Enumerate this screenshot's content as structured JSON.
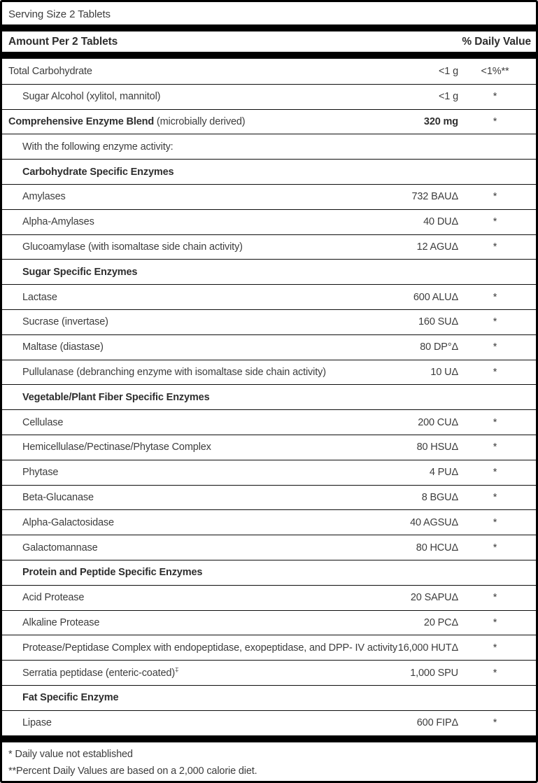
{
  "panel": {
    "serving_size": "Serving Size 2 Tablets",
    "columns": {
      "amount_header": "Amount Per 2 Tablets",
      "dv_header": "% Daily Value"
    },
    "rows": [
      {
        "label": "Total Carbohydrate",
        "amount": "<1 g",
        "dv": "<1%**"
      },
      {
        "label": "Sugar Alcohol (xylitol, mannitol)",
        "indent": true,
        "amount": "<1 g",
        "dv": "*"
      },
      {
        "label_bold": "Comprehensive Enzyme Blend",
        "label": " (microbially derived)",
        "amount": "320 mg",
        "amount_bold": true,
        "dv": "*"
      },
      {
        "label": "With the following enzyme activity:",
        "indent": true
      },
      {
        "label": "Carbohydrate Specific Enzymes",
        "indent": true,
        "bold": true,
        "section": true
      },
      {
        "label": "Amylases",
        "indent": true,
        "amount": "732 BAUΔ",
        "dv": "*"
      },
      {
        "label": "Alpha-Amylases",
        "indent": true,
        "amount": "40 DUΔ",
        "dv": "*"
      },
      {
        "label": "Glucoamylase (with isomaltase side chain activity)",
        "indent": true,
        "amount": "12 AGUΔ",
        "dv": "*"
      },
      {
        "label": "Sugar Specific Enzymes",
        "indent": true,
        "bold": true,
        "section": true
      },
      {
        "label": "Lactase",
        "indent": true,
        "amount": "600 ALUΔ",
        "dv": "*"
      },
      {
        "label": "Sucrase (invertase)",
        "indent": true,
        "amount": "160 SUΔ",
        "dv": "*"
      },
      {
        "label": "Maltase (diastase)",
        "indent": true,
        "amount": "80 DP°Δ",
        "dv": "*"
      },
      {
        "label": "Pullulanase (debranching enzyme with isomaltase side chain activity)",
        "indent": true,
        "amount": "10 UΔ",
        "dv": "*"
      },
      {
        "label": "Vegetable/Plant Fiber Specific Enzymes",
        "indent": true,
        "bold": true,
        "section": true
      },
      {
        "label": "Cellulase",
        "indent": true,
        "amount": "200 CUΔ",
        "dv": "*"
      },
      {
        "label": "Hemicellulase/Pectinase/Phytase Complex",
        "indent": true,
        "amount": "80 HSUΔ",
        "dv": "*"
      },
      {
        "label": "Phytase",
        "indent": true,
        "amount": "4 PUΔ",
        "dv": "*"
      },
      {
        "label": "Beta-Glucanase",
        "indent": true,
        "amount": "8 BGUΔ",
        "dv": "*"
      },
      {
        "label": "Alpha-Galactosidase",
        "indent": true,
        "amount": "40 AGSUΔ",
        "dv": "*"
      },
      {
        "label": "Galactomannase",
        "indent": true,
        "amount": "80 HCUΔ",
        "dv": "*"
      },
      {
        "label": "Protein and Peptide Specific Enzymes",
        "indent": true,
        "bold": true,
        "section": true
      },
      {
        "label": "Acid Protease",
        "indent": true,
        "amount": "20 SAPUΔ",
        "dv": "*"
      },
      {
        "label": "Alkaline Protease",
        "indent": true,
        "amount": "20 PCΔ",
        "dv": "*"
      },
      {
        "label": "Protease/Peptidase Complex with endopeptidase, exopeptidase, and DPP- IV activity",
        "indent": true,
        "amount": "16,000 HUTΔ",
        "dv": "*"
      },
      {
        "label": "Serratia peptidase (enteric-coated)",
        "sup": "‡",
        "indent": true,
        "amount": "1,000 SPU",
        "dv": "*"
      },
      {
        "label": "Fat Specific Enzyme",
        "indent": true,
        "bold": true,
        "section": true
      },
      {
        "label": "Lipase",
        "indent": true,
        "amount": "600 FIPΔ",
        "dv": "*"
      }
    ],
    "footnotes": [
      "* Daily value not established",
      "**Percent Daily Values are based on a 2,000 calorie diet."
    ],
    "colors": {
      "text": "#3d3d3d",
      "rule": "#000000",
      "background": "#ffffff"
    }
  }
}
